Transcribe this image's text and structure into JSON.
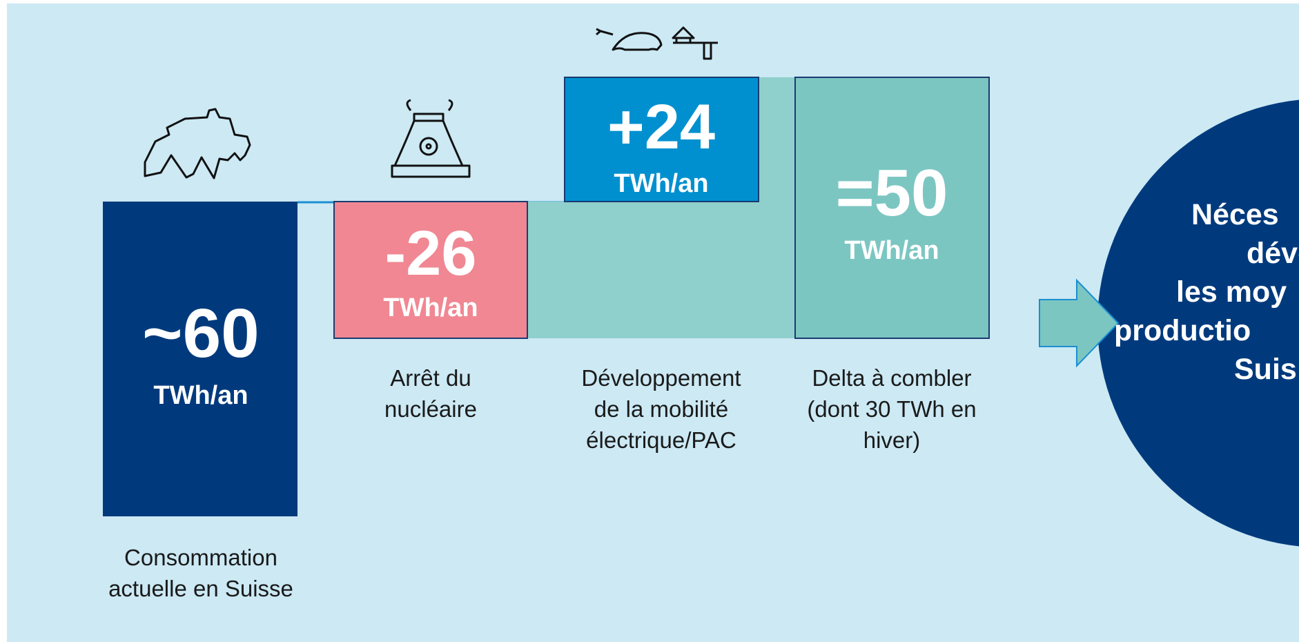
{
  "steps": [
    {
      "amount": "~60",
      "unit": "TWh/an",
      "caption": [
        "Consommation",
        "actuelle en Suisse"
      ]
    },
    {
      "amount": "-26",
      "unit": "TWh/an",
      "caption": [
        "Arrêt du",
        "nucléaire"
      ]
    },
    {
      "amount": "+24",
      "unit": "TWh/an",
      "caption": [
        "Développement",
        "de la mobilité",
        "électrique/PAC"
      ]
    },
    {
      "amount": "=50",
      "unit": "TWh/an",
      "caption": [
        "Delta à combler",
        "(dont 30 TWh en",
        "hiver)"
      ]
    }
  ],
  "conclusion": {
    "lines": [
      "Néces",
      "dével",
      "les moy",
      "productio",
      "Suis"
    ]
  }
}
